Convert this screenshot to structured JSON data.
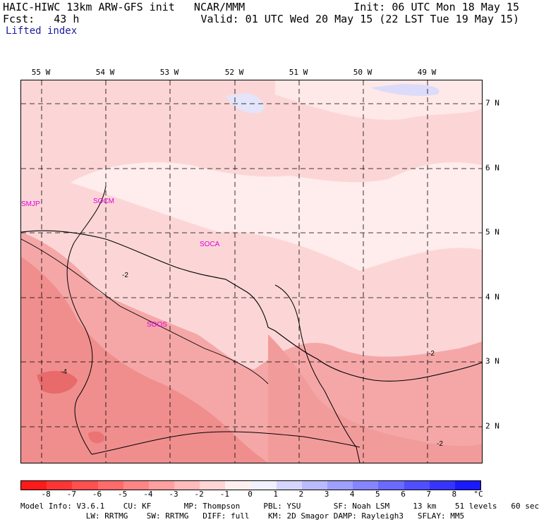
{
  "header": {
    "title_left": "HAIC-HIWC 13km ARW-GFS init   NCAR/MMM",
    "fcst": "Fcst:   43 h",
    "field": "Lifted index",
    "init": "Init: 06 UTC Mon 18 May 15",
    "valid": "Valid: 01 UTC Wed 20 May 15 (22 LST Tue 19 May 15)"
  },
  "axes": {
    "lon_labels": [
      "55 W",
      "54 W",
      "53 W",
      "52 W",
      "51 W",
      "50 W",
      "49 W"
    ],
    "lat_labels": [
      "7 N",
      "6 N",
      "5 N",
      "4 N",
      "3 N",
      "2 N"
    ]
  },
  "stations": [
    "SMJP",
    "SOCM",
    "SOCA",
    "SOOS"
  ],
  "contour_labels": [
    "-2",
    "-4",
    "-2",
    "-2"
  ],
  "colorbar": {
    "values": [
      "-8",
      "-7",
      "-6",
      "-5",
      "-4",
      "-3",
      "-2",
      "-1",
      "0",
      "1",
      "2",
      "3",
      "4",
      "5",
      "6",
      "7",
      "8"
    ],
    "unit": "°C",
    "colors": [
      "#ff1a1a",
      "#ff3535",
      "#ff4f4f",
      "#ff6a6a",
      "#ff8585",
      "#ff9f9f",
      "#ffbaba",
      "#ffd5d5",
      "#fff0f0",
      "#f0f0ff",
      "#d5d5ff",
      "#babaff",
      "#9f9fff",
      "#8585ff",
      "#6a6aff",
      "#4f4fff",
      "#3535ff",
      "#1a1aff"
    ]
  },
  "footer": {
    "line1": "Model Info: V3.6.1    CU: KF       MP: Thompson     PBL: YSU       SF: Noah LSM     13 km    51 levels   60 sec",
    "line2": "              LW: RRTMG    SW: RRTMG   DIFF: full    KM: 2D Smagor DAMP: Rayleigh3   SFLAY: MM5"
  }
}
